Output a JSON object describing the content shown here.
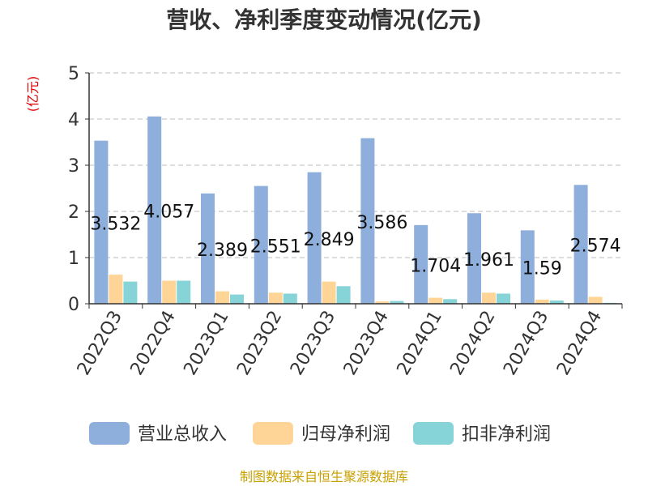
{
  "chart_data": {
    "type": "bar",
    "title": "营收、净利季度变动情况(亿元)",
    "unit_label": "(亿元)",
    "ylim": [
      0,
      5
    ],
    "yticks": [
      "0",
      "1",
      "2",
      "3",
      "4",
      "5"
    ],
    "grid": true,
    "legend_position": "bottom",
    "categories": [
      "2022Q3",
      "2022Q4",
      "2023Q1",
      "2023Q2",
      "2023Q3",
      "2023Q4",
      "2024Q1",
      "2024Q2",
      "2024Q3",
      "2024Q4"
    ],
    "series": [
      {
        "name": "营业总收入",
        "color": "#8eaedb",
        "values": [
          3.532,
          4.057,
          2.389,
          2.551,
          2.849,
          3.586,
          1.704,
          1.961,
          1.59,
          2.574
        ],
        "labels": [
          "3.532",
          "4.057",
          "2.389",
          "2.551",
          "2.849",
          "3.586",
          "1.704",
          "1.961",
          "1.59",
          "2.574"
        ]
      },
      {
        "name": "归母净利润",
        "color": "#ffd597",
        "values": [
          0.63,
          0.5,
          0.27,
          0.24,
          0.48,
          0.05,
          0.13,
          0.24,
          0.09,
          0.15
        ]
      },
      {
        "name": "扣非净利润",
        "color": "#86d4d7",
        "values": [
          0.48,
          0.5,
          0.2,
          0.22,
          0.38,
          0.06,
          0.1,
          0.22,
          0.07,
          0.02
        ]
      }
    ],
    "source": "制图数据来自恒生聚源数据库"
  }
}
